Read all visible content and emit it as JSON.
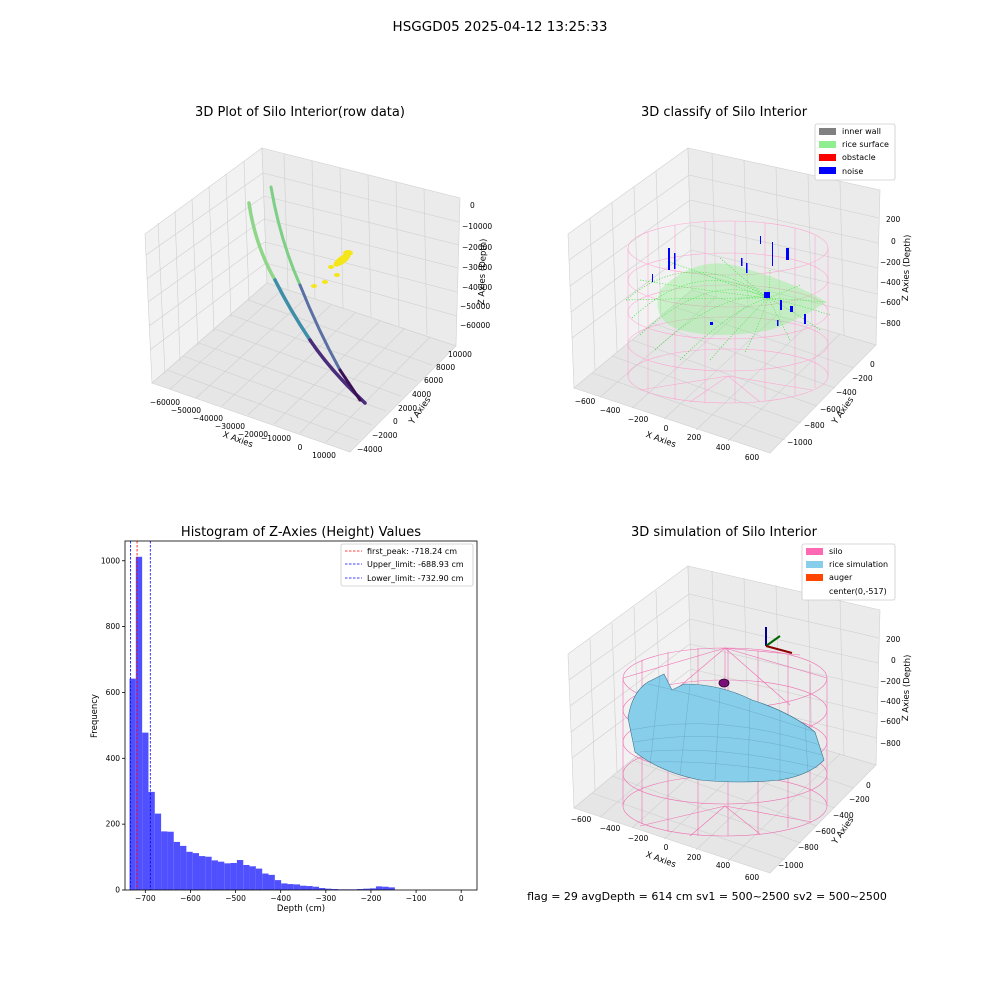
{
  "figure": {
    "suptitle": "HSGGD05 2025-04-12 13:25:33",
    "footer": "flag = 29  avgDepth = 614 cm  sv1 = 500~2500  sv2 = 500~2500"
  },
  "chart_data": [
    {
      "id": "raw",
      "type": "scatter",
      "projection": "3d",
      "title": "3D Plot of Silo Interior(row data)",
      "xlabel": "X Axies",
      "ylabel": "Y Axies",
      "zlabel": "Z Axies (Depth)",
      "xticks": [
        "−60000",
        "−50000",
        "−40000",
        "−30000",
        "−20000",
        "−10000",
        "0",
        "10000"
      ],
      "yticks": [
        "−4000",
        "−2000",
        "0",
        "2000",
        "4000",
        "6000",
        "8000",
        "10000"
      ],
      "zticks": [
        "0",
        "−10000",
        "−20000",
        "−30000",
        "−40000",
        "−50000",
        "−60000"
      ],
      "series": [
        {
          "values": "two curved point streaks descending from about z = −5000 to z = −60000 (viridis colored by depth)"
        },
        {
          "values": "yellow cluster near z = −20000 to −30000"
        }
      ],
      "colors": {
        "top": "#fde725",
        "mid": "#21918c",
        "bottom": "#440154",
        "cluster": "#f5e61a"
      }
    },
    {
      "id": "classify",
      "type": "scatter",
      "projection": "3d",
      "title": "3D classify of Silo Interior",
      "xlabel": "X Axies",
      "ylabel": "Y Axies",
      "zlabel": "Z Axies (Depth)",
      "xticks": [
        "−600",
        "−400",
        "−200",
        "0",
        "200",
        "400",
        "600"
      ],
      "yticks": [
        "−1000",
        "−800",
        "−600",
        "−400",
        "−200",
        "0"
      ],
      "zticks": [
        "200",
        "0",
        "−200",
        "−400",
        "−600",
        "−800"
      ],
      "legend": {
        "placement": "upper-right",
        "entries": [
          {
            "label": "inner wall",
            "color": "#808080"
          },
          {
            "label": "rice surface",
            "color": "#90ee90"
          },
          {
            "label": "obstacle",
            "color": "#ff0000"
          },
          {
            "label": "noise",
            "color": "#0000ff"
          }
        ]
      }
    },
    {
      "id": "histogram",
      "type": "bar",
      "title": "Histogram of Z-Axies (Height) Values",
      "xlabel": "Depth (cm)",
      "ylabel": "Frequency",
      "xlim": [
        -745,
        35
      ],
      "ylim": [
        0,
        1060
      ],
      "xticks": [
        -700,
        -600,
        -500,
        -400,
        -300,
        -200,
        -100,
        0
      ],
      "yticks": [
        0,
        200,
        400,
        600,
        800,
        1000
      ],
      "bin_start": -735,
      "bin_width": 14,
      "values": [
        642,
        1012,
        478,
        298,
        232,
        178,
        177,
        146,
        134,
        116,
        112,
        103,
        101,
        90,
        86,
        81,
        82,
        91,
        76,
        72,
        65,
        50,
        46,
        30,
        20,
        18,
        17,
        13,
        12,
        10,
        6,
        4,
        3,
        2,
        2,
        2,
        3,
        4,
        5,
        11,
        10,
        8
      ],
      "bar_color": "#5050ff",
      "lines": [
        {
          "value": -718.24,
          "color": "#ff0000",
          "label": "first_peak: -718.24 cm"
        },
        {
          "value": -688.93,
          "color": "#0000ff",
          "label": "Upper_limit: -688.93 cm"
        },
        {
          "value": -732.9,
          "color": "#0000ff",
          "label": "Lower_limit: -732.90 cm"
        }
      ],
      "legend": {
        "placement": "upper-right"
      }
    },
    {
      "id": "simulation",
      "type": "other",
      "projection": "3d",
      "title": "3D simulation of Silo Interior",
      "xlabel": "X Axies",
      "ylabel": "Y Axies",
      "zlabel": "Z Axies (Depth)",
      "xticks": [
        "−600",
        "−400",
        "−200",
        "0",
        "200",
        "400",
        "600"
      ],
      "yticks": [
        "−1000",
        "−800",
        "−600",
        "−400",
        "−200",
        "0"
      ],
      "zticks": [
        "200",
        "0",
        "−200",
        "−400",
        "−600",
        "−800"
      ],
      "legend": {
        "placement": "upper-right",
        "entries": [
          {
            "label": "silo",
            "color": "#ff69b4"
          },
          {
            "label": "rice simulation",
            "color": "#87ceeb"
          },
          {
            "label": "auger",
            "color": "#ff4500"
          },
          {
            "label": "center(0,-517)",
            "color": ""
          }
        ]
      }
    }
  ]
}
